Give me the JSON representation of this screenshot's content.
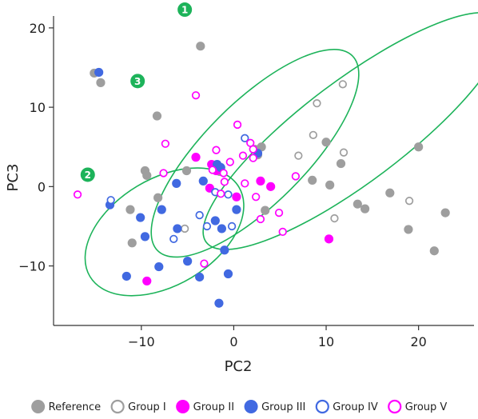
{
  "chart_data": {
    "type": "scatter",
    "title": "",
    "xlabel": "PC2",
    "ylabel": "PC3",
    "xlim": [
      -19.5,
      26
    ],
    "ylim": [
      -17.5,
      21.5
    ],
    "xticks": [
      -10,
      0,
      10,
      20
    ],
    "yticks": [
      -10,
      0,
      10,
      20
    ],
    "grid": false,
    "legend_position": "bottom",
    "series": [
      {
        "name": "Reference",
        "marker": "filled",
        "color": "#9e9e9e",
        "points": [
          [
            -15.1,
            14.3
          ],
          [
            -14.4,
            13.1
          ],
          [
            -3.6,
            17.7
          ],
          [
            -8.3,
            8.9
          ],
          [
            -9.6,
            2.0
          ],
          [
            -9.4,
            1.4
          ],
          [
            -5.1,
            2.0
          ],
          [
            -8.2,
            -1.4
          ],
          [
            -11.2,
            -2.9
          ],
          [
            -11.0,
            -7.1
          ],
          [
            -1.5,
            1.9
          ],
          [
            2.3,
            4.7
          ],
          [
            3.0,
            5.0
          ],
          [
            2.6,
            4.0
          ],
          [
            3.4,
            -3.0
          ],
          [
            8.5,
            0.8
          ],
          [
            10.0,
            5.6
          ],
          [
            10.4,
            0.2
          ],
          [
            11.6,
            2.9
          ],
          [
            13.4,
            -2.2
          ],
          [
            14.2,
            -2.8
          ],
          [
            16.9,
            -0.8
          ],
          [
            18.9,
            -5.4
          ],
          [
            20.0,
            5.0
          ],
          [
            21.7,
            -8.1
          ],
          [
            22.9,
            -3.3
          ]
        ]
      },
      {
        "name": "Group I",
        "marker": "open",
        "color": "#9e9e9e",
        "points": [
          [
            11.8,
            12.9
          ],
          [
            9.0,
            10.5
          ],
          [
            8.6,
            6.5
          ],
          [
            7.0,
            3.9
          ],
          [
            11.9,
            4.3
          ],
          [
            10.9,
            -4.0
          ],
          [
            19.0,
            -1.8
          ],
          [
            -5.3,
            -5.3
          ]
        ]
      },
      {
        "name": "Group II",
        "marker": "filled",
        "color": "#ff00ff",
        "points": [
          [
            -4.1,
            3.7
          ],
          [
            -2.4,
            2.8
          ],
          [
            -1.9,
            2.0
          ],
          [
            -2.6,
            -0.2
          ],
          [
            0.3,
            -1.3
          ],
          [
            2.9,
            0.7
          ],
          [
            4.0,
            0.0
          ],
          [
            10.3,
            -6.6
          ],
          [
            -9.4,
            -11.9
          ]
        ]
      },
      {
        "name": "Group III",
        "marker": "filled",
        "color": "#4169e1",
        "points": [
          [
            -14.6,
            14.4
          ],
          [
            -1.8,
            2.8
          ],
          [
            -1.4,
            2.4
          ],
          [
            -3.3,
            0.7
          ],
          [
            -6.2,
            0.4
          ],
          [
            -13.4,
            -2.3
          ],
          [
            -10.1,
            -3.9
          ],
          [
            -7.8,
            -2.9
          ],
          [
            -9.6,
            -6.3
          ],
          [
            -6.1,
            -5.3
          ],
          [
            -2.0,
            -4.3
          ],
          [
            -1.3,
            -5.3
          ],
          [
            0.3,
            -2.9
          ],
          [
            2.6,
            4.2
          ],
          [
            -11.6,
            -11.3
          ],
          [
            -8.1,
            -10.1
          ],
          [
            -5.0,
            -9.4
          ],
          [
            -3.7,
            -11.4
          ],
          [
            -1.0,
            -8.0
          ],
          [
            -0.6,
            -11.0
          ],
          [
            -1.6,
            -14.7
          ]
        ]
      },
      {
        "name": "Group IV",
        "marker": "open",
        "color": "#4169e1",
        "points": [
          [
            1.2,
            6.1
          ],
          [
            -2.0,
            -0.7
          ],
          [
            -0.6,
            -1.0
          ],
          [
            -3.7,
            -3.6
          ],
          [
            -13.3,
            -1.7
          ],
          [
            -2.9,
            -5.0
          ],
          [
            -0.2,
            -5.0
          ],
          [
            -6.5,
            -6.6
          ]
        ]
      },
      {
        "name": "Group V",
        "marker": "open",
        "color": "#ff00ff",
        "points": [
          [
            -4.1,
            11.5
          ],
          [
            0.4,
            7.8
          ],
          [
            -7.4,
            5.4
          ],
          [
            1.8,
            5.5
          ],
          [
            2.1,
            4.7
          ],
          [
            -1.9,
            4.6
          ],
          [
            1.0,
            3.9
          ],
          [
            -0.4,
            3.1
          ],
          [
            -7.6,
            1.7
          ],
          [
            -2.3,
            2.1
          ],
          [
            -1.1,
            1.7
          ],
          [
            1.2,
            0.4
          ],
          [
            -1.0,
            0.6
          ],
          [
            2.1,
            3.6
          ],
          [
            2.4,
            -1.3
          ],
          [
            -1.4,
            -0.9
          ],
          [
            6.7,
            1.3
          ],
          [
            -16.9,
            -1.0
          ],
          [
            2.9,
            -4.1
          ],
          [
            4.9,
            -3.3
          ],
          [
            5.3,
            -5.7
          ],
          [
            -3.2,
            -9.7
          ]
        ]
      }
    ],
    "annotations": [
      {
        "label": "1",
        "ellipse": {
          "cx": 13.0,
          "cy": 7.0,
          "rx": 20.0,
          "ry": 6.4,
          "angle_deg": -37
        },
        "badge": {
          "x": -5.3,
          "y": 22.3
        }
      },
      {
        "label": "2",
        "ellipse": {
          "cx": -7.5,
          "cy": -5.7,
          "rx": 9.4,
          "ry": 6.7,
          "angle_deg": -31
        },
        "badge": {
          "x": -15.8,
          "y": 1.5
        }
      },
      {
        "label": "3",
        "ellipse": {
          "cx": 2.3,
          "cy": 4.2,
          "rx": 14.9,
          "ry": 6.4,
          "angle_deg": -45
        },
        "badge": {
          "x": -10.4,
          "y": 13.3
        }
      }
    ],
    "colors": {
      "ellipse": "#1db35a",
      "badge": "#1db35a",
      "axis": "#333333",
      "plot_bg": "#ffffff"
    }
  }
}
